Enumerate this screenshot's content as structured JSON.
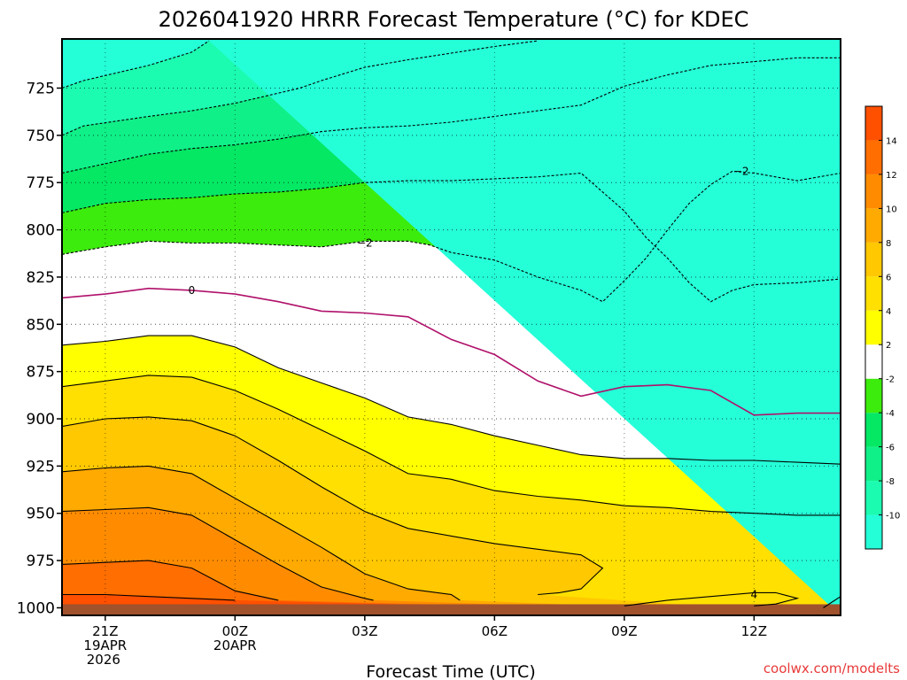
{
  "chart_data": {
    "type": "contour",
    "title": "2026041920 HRRR Forecast Temperature (°C) for KDEC",
    "xlabel": "Forecast Time (UTC)",
    "ylabel": "",
    "credit": "coolwx.com/modelts",
    "x_ticks": [
      {
        "hour": 0,
        "lines": [
          "21Z",
          "19APR",
          "2026"
        ]
      },
      {
        "hour": 3,
        "lines": [
          "00Z",
          "20APR"
        ]
      },
      {
        "hour": 6,
        "lines": [
          "03Z"
        ]
      },
      {
        "hour": 9,
        "lines": [
          "06Z"
        ]
      },
      {
        "hour": 12,
        "lines": [
          "09Z"
        ]
      },
      {
        "hour": 15,
        "lines": [
          "12Z"
        ]
      }
    ],
    "xlim": [
      -1,
      17
    ],
    "y_ticks": [
      725,
      750,
      775,
      800,
      825,
      850,
      875,
      900,
      925,
      950,
      975,
      1000
    ],
    "ylim": [
      1004,
      699
    ],
    "y_scale": "linear (pressure, hPa, increasing downward)",
    "grid": "dotted",
    "colorbar": {
      "levels": [
        -12,
        -10,
        -8,
        -6,
        -4,
        -2,
        2,
        4,
        6,
        8,
        10,
        12,
        14,
        16
      ],
      "tick_labels": [
        "-10",
        "-8",
        "-6",
        "-4",
        "-2",
        "2",
        "4",
        "6",
        "8",
        "10",
        "12",
        "14"
      ],
      "colors": [
        "#24ffd8",
        "#1cfcb0",
        "#10f088",
        "#04e864",
        "#3cec0c",
        "#ffffff",
        "#ffff00",
        "#ffe000",
        "#ffc800",
        "#ffaa00",
        "#ff8c00",
        "#ff6e00",
        "#ff5000"
      ]
    },
    "ground_color": "#a0522d",
    "ground_top_hpa": 1000,
    "contours": [
      {
        "value": -8,
        "label": "",
        "style": "dashed",
        "points": [
          [
            -1,
            725
          ],
          [
            -0.5,
            721
          ],
          [
            1,
            713
          ],
          [
            2,
            706
          ],
          [
            2.4,
            700
          ]
        ]
      },
      {
        "value": -6,
        "label": "",
        "style": "dashed",
        "points": [
          [
            -1,
            750
          ],
          [
            -0.5,
            745
          ],
          [
            1,
            740
          ],
          [
            2,
            737
          ],
          [
            3,
            733
          ],
          [
            4.5,
            725
          ],
          [
            5,
            721
          ],
          [
            6,
            714
          ],
          [
            7,
            710
          ],
          [
            9,
            703
          ],
          [
            10,
            700
          ]
        ]
      },
      {
        "value": -4,
        "label": "",
        "style": "dashed",
        "points": [
          [
            -1,
            770
          ],
          [
            0,
            765
          ],
          [
            1,
            760
          ],
          [
            2,
            757
          ],
          [
            3,
            755
          ],
          [
            4,
            752
          ],
          [
            5,
            748
          ],
          [
            6,
            746
          ],
          [
            7,
            745
          ],
          [
            8,
            743
          ],
          [
            9,
            740
          ],
          [
            10,
            737
          ],
          [
            11,
            734
          ],
          [
            12,
            724
          ],
          [
            13,
            718
          ],
          [
            14,
            713
          ],
          [
            15,
            711
          ],
          [
            16,
            709
          ],
          [
            17,
            709
          ]
        ]
      },
      {
        "value": -2,
        "label": "−2",
        "style": "dashed",
        "points": [
          [
            -1,
            791
          ],
          [
            0,
            786
          ],
          [
            1,
            784
          ],
          [
            2,
            783
          ],
          [
            3,
            781
          ],
          [
            4,
            780
          ],
          [
            5,
            778
          ],
          [
            6,
            775
          ],
          [
            7,
            774
          ],
          [
            8,
            774
          ],
          [
            9,
            773
          ],
          [
            10,
            772
          ],
          [
            11,
            770
          ],
          [
            11.5,
            780
          ],
          [
            12,
            790
          ],
          [
            12.5,
            804
          ],
          [
            13,
            815
          ],
          [
            13.5,
            828
          ],
          [
            14,
            838
          ],
          [
            14.5,
            832
          ],
          [
            15,
            829
          ],
          [
            16,
            828
          ],
          [
            17,
            826
          ]
        ]
      },
      {
        "value": -2,
        "label": "",
        "style": "dashed",
        "points": [
          [
            -1,
            813
          ],
          [
            0,
            809
          ],
          [
            1,
            806
          ],
          [
            2,
            807
          ],
          [
            3,
            807
          ],
          [
            4,
            808
          ],
          [
            5,
            809
          ],
          [
            6,
            806
          ],
          [
            7,
            806
          ],
          [
            7.5,
            808
          ],
          [
            8,
            812
          ],
          [
            9,
            816
          ],
          [
            10,
            825
          ],
          [
            11,
            832
          ],
          [
            11.5,
            838
          ],
          [
            12,
            827
          ],
          [
            12.5,
            815
          ],
          [
            13,
            800
          ],
          [
            13.5,
            786
          ],
          [
            14,
            776
          ],
          [
            14.5,
            769
          ],
          [
            15,
            770
          ],
          [
            16,
            774
          ],
          [
            17,
            770
          ]
        ]
      },
      {
        "value": 0,
        "label": "0",
        "style": "solid",
        "color": "#b0106a",
        "points": [
          [
            -1,
            836
          ],
          [
            0,
            834
          ],
          [
            1,
            831
          ],
          [
            2,
            832
          ],
          [
            3,
            834
          ],
          [
            4,
            838
          ],
          [
            5,
            843
          ],
          [
            6,
            844
          ],
          [
            7,
            846
          ],
          [
            8,
            858
          ],
          [
            9,
            866
          ],
          [
            10,
            880
          ],
          [
            11,
            888
          ],
          [
            12,
            883
          ],
          [
            13,
            882
          ],
          [
            14,
            885
          ],
          [
            15,
            898
          ],
          [
            16,
            897
          ],
          [
            17,
            897
          ]
        ]
      },
      {
        "value": 2,
        "label": "",
        "style": "solid",
        "points": [
          [
            -1,
            861
          ],
          [
            0,
            859
          ],
          [
            1,
            856
          ],
          [
            2,
            856
          ],
          [
            3,
            862
          ],
          [
            4,
            873
          ],
          [
            5,
            881
          ],
          [
            6,
            889
          ],
          [
            7,
            899
          ],
          [
            8,
            903
          ],
          [
            9,
            909
          ],
          [
            10,
            914
          ],
          [
            11,
            919
          ],
          [
            12,
            921
          ],
          [
            13,
            921
          ],
          [
            14,
            922
          ],
          [
            15,
            922
          ],
          [
            16,
            923
          ],
          [
            17,
            924
          ]
        ]
      },
      {
        "value": 4,
        "label": "",
        "style": "solid",
        "points": [
          [
            -1,
            883
          ],
          [
            0,
            880
          ],
          [
            1,
            877
          ],
          [
            2,
            878
          ],
          [
            3,
            885
          ],
          [
            4,
            895
          ],
          [
            5,
            906
          ],
          [
            6,
            917
          ],
          [
            7,
            929
          ],
          [
            8,
            932
          ],
          [
            9,
            938
          ],
          [
            10,
            941
          ],
          [
            11,
            943
          ],
          [
            12,
            946
          ],
          [
            13,
            947
          ],
          [
            14,
            949
          ],
          [
            15,
            950
          ],
          [
            16,
            951
          ],
          [
            17,
            951
          ]
        ]
      },
      {
        "value": 6,
        "label": "",
        "style": "solid",
        "points": [
          [
            -1,
            904
          ],
          [
            0,
            900
          ],
          [
            1,
            899
          ],
          [
            2,
            901
          ],
          [
            3,
            909
          ],
          [
            4,
            922
          ],
          [
            5,
            936
          ],
          [
            6,
            949
          ],
          [
            7,
            958
          ],
          [
            8,
            962
          ],
          [
            9,
            966
          ],
          [
            10,
            969
          ],
          [
            11,
            972
          ],
          [
            11.5,
            979
          ],
          [
            11,
            990
          ],
          [
            10.5,
            992
          ],
          [
            10,
            993
          ]
        ]
      },
      {
        "value": 8,
        "label": "",
        "style": "solid",
        "points": [
          [
            -1,
            928
          ],
          [
            0,
            926
          ],
          [
            1,
            925
          ],
          [
            2,
            929
          ],
          [
            3,
            942
          ],
          [
            4,
            955
          ],
          [
            5,
            968
          ],
          [
            6,
            982
          ],
          [
            7,
            990
          ],
          [
            8,
            993
          ],
          [
            8.2,
            996
          ]
        ]
      },
      {
        "value": 10,
        "label": "",
        "style": "solid",
        "points": [
          [
            -1,
            949
          ],
          [
            0,
            948
          ],
          [
            1,
            947
          ],
          [
            2,
            951
          ],
          [
            3,
            964
          ],
          [
            4,
            977
          ],
          [
            5,
            989
          ],
          [
            6,
            995
          ],
          [
            6.2,
            996
          ]
        ]
      },
      {
        "value": 12,
        "label": "",
        "style": "solid",
        "points": [
          [
            -1,
            977
          ],
          [
            0,
            976
          ],
          [
            1,
            975
          ],
          [
            2,
            979
          ],
          [
            3,
            991
          ],
          [
            4,
            996
          ]
        ]
      },
      {
        "value": 14,
        "label": "",
        "style": "solid",
        "points": [
          [
            -1,
            993
          ],
          [
            0,
            993
          ],
          [
            1,
            994
          ],
          [
            2,
            995
          ],
          [
            3,
            996
          ]
        ]
      },
      {
        "value": 4,
        "label": "4",
        "style": "solid",
        "points": [
          [
            12,
            999
          ],
          [
            13,
            996
          ],
          [
            14,
            994
          ],
          [
            15,
            992
          ],
          [
            15.5,
            992
          ],
          [
            16,
            995
          ],
          [
            15.5,
            998
          ],
          [
            15,
            999
          ]
        ]
      },
      {
        "value": 4,
        "label": "",
        "style": "solid",
        "points": [
          [
            16.6,
            1000
          ],
          [
            17,
            994
          ]
        ]
      }
    ],
    "labels": [
      {
        "text": "0",
        "x": 2,
        "y": 832
      },
      {
        "text": "−2",
        "x": 6,
        "y": 807
      },
      {
        "text": "−2",
        "x": 14.7,
        "y": 769
      },
      {
        "text": "4",
        "x": 15,
        "y": 993
      }
    ]
  }
}
